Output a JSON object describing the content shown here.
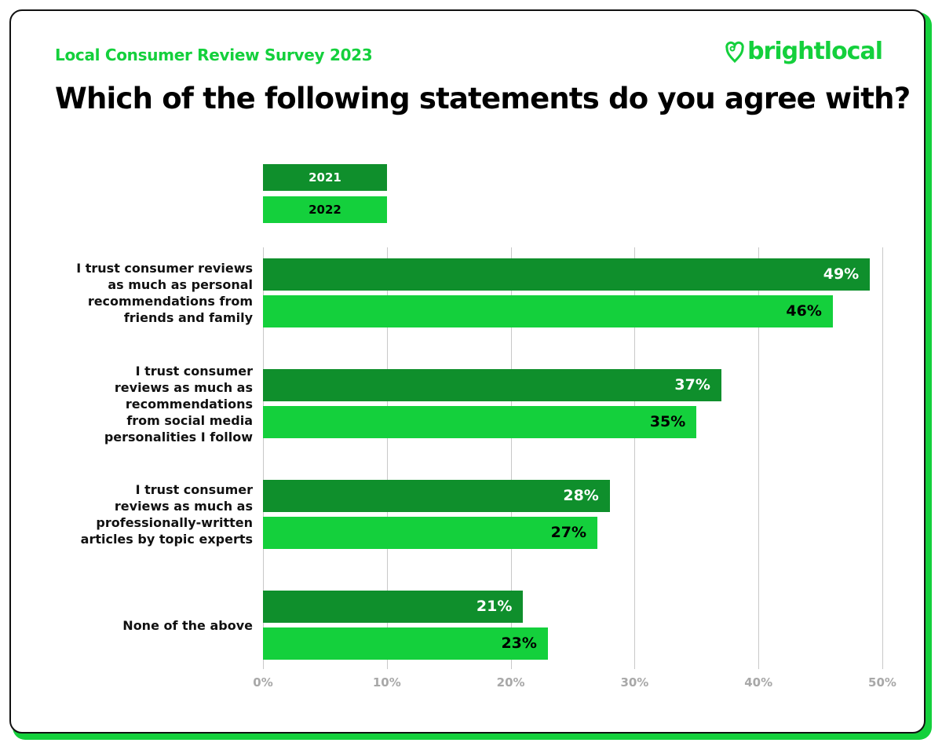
{
  "header": {
    "subtitle": "Local Consumer Review Survey 2023",
    "logo": "brightlocal",
    "title": "Which of the following statements do you agree with?"
  },
  "colors": {
    "2021": "#0f8f2c",
    "2022": "#14d03c",
    "accent": "#14d03c"
  },
  "chart_data": {
    "type": "bar",
    "orientation": "horizontal",
    "title": "Which of the following statements do you agree with?",
    "categories": [
      "I trust consumer reviews as much as personal recommendations from friends and family",
      "I trust consumer reviews as much as recommendations from social media personalities I follow",
      "I trust consumer reviews as much as professionally-written articles by topic experts",
      "None of the above"
    ],
    "category_lines": [
      [
        "I trust consumer reviews",
        "as much as personal",
        "recommendations from",
        "friends and family"
      ],
      [
        "I trust consumer",
        "reviews as much as",
        "recommendations",
        "from social media",
        "personalities I follow"
      ],
      [
        "I trust consumer",
        "reviews as much as",
        "professionally-written",
        "articles by topic experts"
      ],
      [
        "None of the above"
      ]
    ],
    "series": [
      {
        "name": "2021",
        "values": [
          49,
          37,
          28,
          21
        ],
        "labels": [
          "49%",
          "37%",
          "28%",
          "21%"
        ]
      },
      {
        "name": "2022",
        "values": [
          46,
          35,
          27,
          23
        ],
        "labels": [
          "46%",
          "35%",
          "27%",
          "23%"
        ]
      }
    ],
    "xlim": [
      0,
      50
    ],
    "ticks": [
      "0%",
      "10%",
      "20%",
      "30%",
      "40%",
      "50%"
    ],
    "grid": true,
    "legend": "top-left"
  }
}
